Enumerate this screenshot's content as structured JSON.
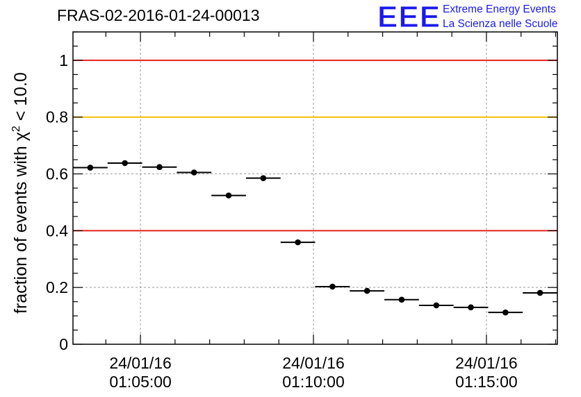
{
  "chart_data": {
    "type": "scatter",
    "title": "FRAS-02-2016-01-24-00013",
    "ylabel_main": "fraction of events with χ",
    "ylabel_sup": "2",
    "ylabel_tail": " < 10.0",
    "xlabel": "",
    "ylim": [
      0,
      1.1
    ],
    "x_unit": "minutes after 01:00:00 on 24/01/16",
    "xlim": [
      3.05,
      17.05
    ],
    "x_ticks": [
      {
        "x": 5,
        "date": "24/01/16",
        "time": "01:05:00"
      },
      {
        "x": 10,
        "date": "24/01/16",
        "time": "01:10:00"
      },
      {
        "x": 15,
        "date": "24/01/16",
        "time": "01:15:00"
      }
    ],
    "y_ticks": [
      {
        "v": 0,
        "label": "0"
      },
      {
        "v": 0.2,
        "label": "0.2"
      },
      {
        "v": 0.4,
        "label": "0.4"
      },
      {
        "v": 0.6,
        "label": "0.6"
      },
      {
        "v": 0.8,
        "label": "0.8"
      },
      {
        "v": 1,
        "label": "1"
      }
    ],
    "reference_lines": [
      {
        "y": 1.0,
        "color": "#e8201a"
      },
      {
        "y": 0.8,
        "color": "#f5c000"
      },
      {
        "y": 0.4,
        "color": "#e8201a"
      }
    ],
    "bin_half_width": 0.5,
    "points": [
      {
        "x": 3.55,
        "y": 0.622
      },
      {
        "x": 4.55,
        "y": 0.638
      },
      {
        "x": 5.55,
        "y": 0.624
      },
      {
        "x": 6.55,
        "y": 0.605
      },
      {
        "x": 7.55,
        "y": 0.524
      },
      {
        "x": 8.55,
        "y": 0.585
      },
      {
        "x": 9.55,
        "y": 0.359
      },
      {
        "x": 10.55,
        "y": 0.203
      },
      {
        "x": 11.55,
        "y": 0.188
      },
      {
        "x": 12.55,
        "y": 0.157
      },
      {
        "x": 13.55,
        "y": 0.137
      },
      {
        "x": 14.55,
        "y": 0.13
      },
      {
        "x": 15.55,
        "y": 0.112
      },
      {
        "x": 16.55,
        "y": 0.181
      }
    ],
    "grid": true
  },
  "logo": {
    "mark": "EEE",
    "line1": "Extreme Energy Events",
    "line2": "La Scienza nelle Scuole",
    "color": "#1a1aee"
  }
}
